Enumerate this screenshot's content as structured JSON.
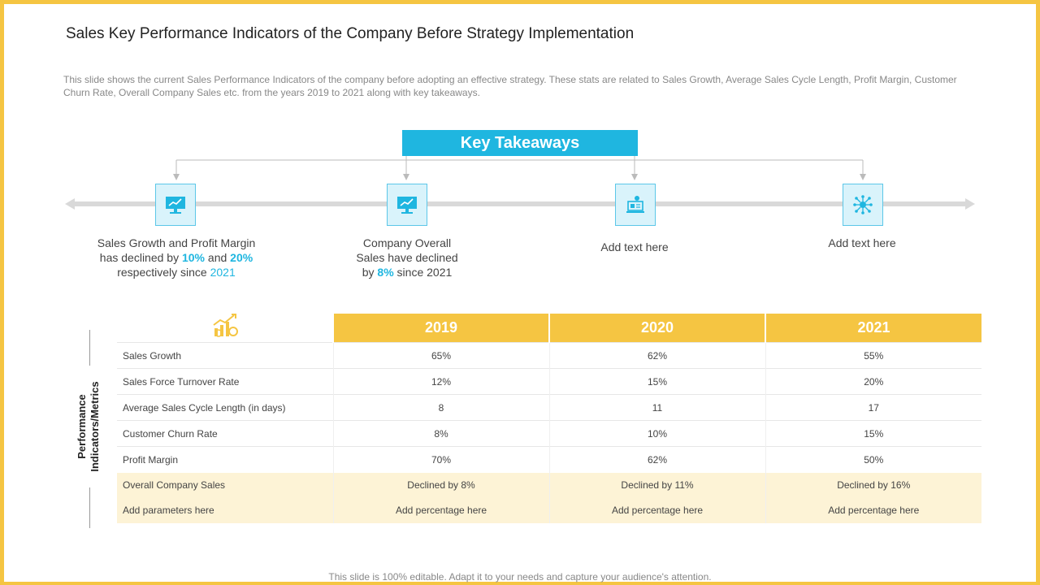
{
  "slide": {
    "title": "Sales Key Performance Indicators of the Company Before Strategy Implementation",
    "description": "This slide shows the current Sales Performance Indicators of the company before adopting an effective strategy. These stats are related to Sales Growth, Average Sales Cycle Length, Profit Margin, Customer Churn Rate, Overall Company Sales etc. from the years 2019 to 2021 along with key takeaways.",
    "footer": "This slide is 100% editable. Adapt it to your needs and capture your audience's attention."
  },
  "key_takeaways": {
    "heading": "Key Takeaways",
    "items": [
      {
        "icon": "monitor-chart-icon",
        "line1": "Sales Growth and Profit Margin",
        "line2_a": "has declined by ",
        "line2_b": "10%",
        "line2_c": " and ",
        "line2_d": "20%",
        "line3_a": "respectively since ",
        "line3_b": "2021"
      },
      {
        "icon": "monitor-chart-icon",
        "line1": "Company Overall",
        "line2": "Sales have declined",
        "line3_a": "by ",
        "line3_b": "8%",
        "line3_c": " since 2021"
      },
      {
        "icon": "laptop-user-icon",
        "text": "Add text here"
      },
      {
        "icon": "network-gear-icon",
        "text": "Add text here"
      }
    ]
  },
  "table": {
    "side_label_line1": "Performance",
    "side_label_line2": "Indicators/Metrics",
    "header_icon": "growth-chart-coins-icon",
    "years": [
      "2019",
      "2020",
      "2021"
    ],
    "rows": [
      {
        "metric": "Sales Growth",
        "values": [
          "65%",
          "62%",
          "55%"
        ]
      },
      {
        "metric": "Sales Force Turnover  Rate",
        "values": [
          "12%",
          "15%",
          "20%"
        ]
      },
      {
        "metric": "Average  Sales Cycle Length (in days)",
        "values": [
          "8",
          "11",
          "17"
        ]
      },
      {
        "metric": "Customer Churn Rate",
        "values": [
          "8%",
          "10%",
          "15%"
        ]
      },
      {
        "metric": "Profit Margin",
        "values": [
          "70%",
          "62%",
          "50%"
        ]
      }
    ],
    "highlight_rows": [
      {
        "metric": "Overall  Company Sales",
        "values": [
          "Declined by 8%",
          "Declined by 11%",
          "Declined by 16%"
        ]
      },
      {
        "metric": "Add parameters here",
        "values": [
          "Add percentage  here",
          "Add percentage  here",
          "Add percentage  here"
        ]
      }
    ]
  },
  "colors": {
    "accent_blue": "#1fb6e0",
    "accent_yellow": "#f5c542",
    "highlight_row": "#fdf3d6"
  }
}
